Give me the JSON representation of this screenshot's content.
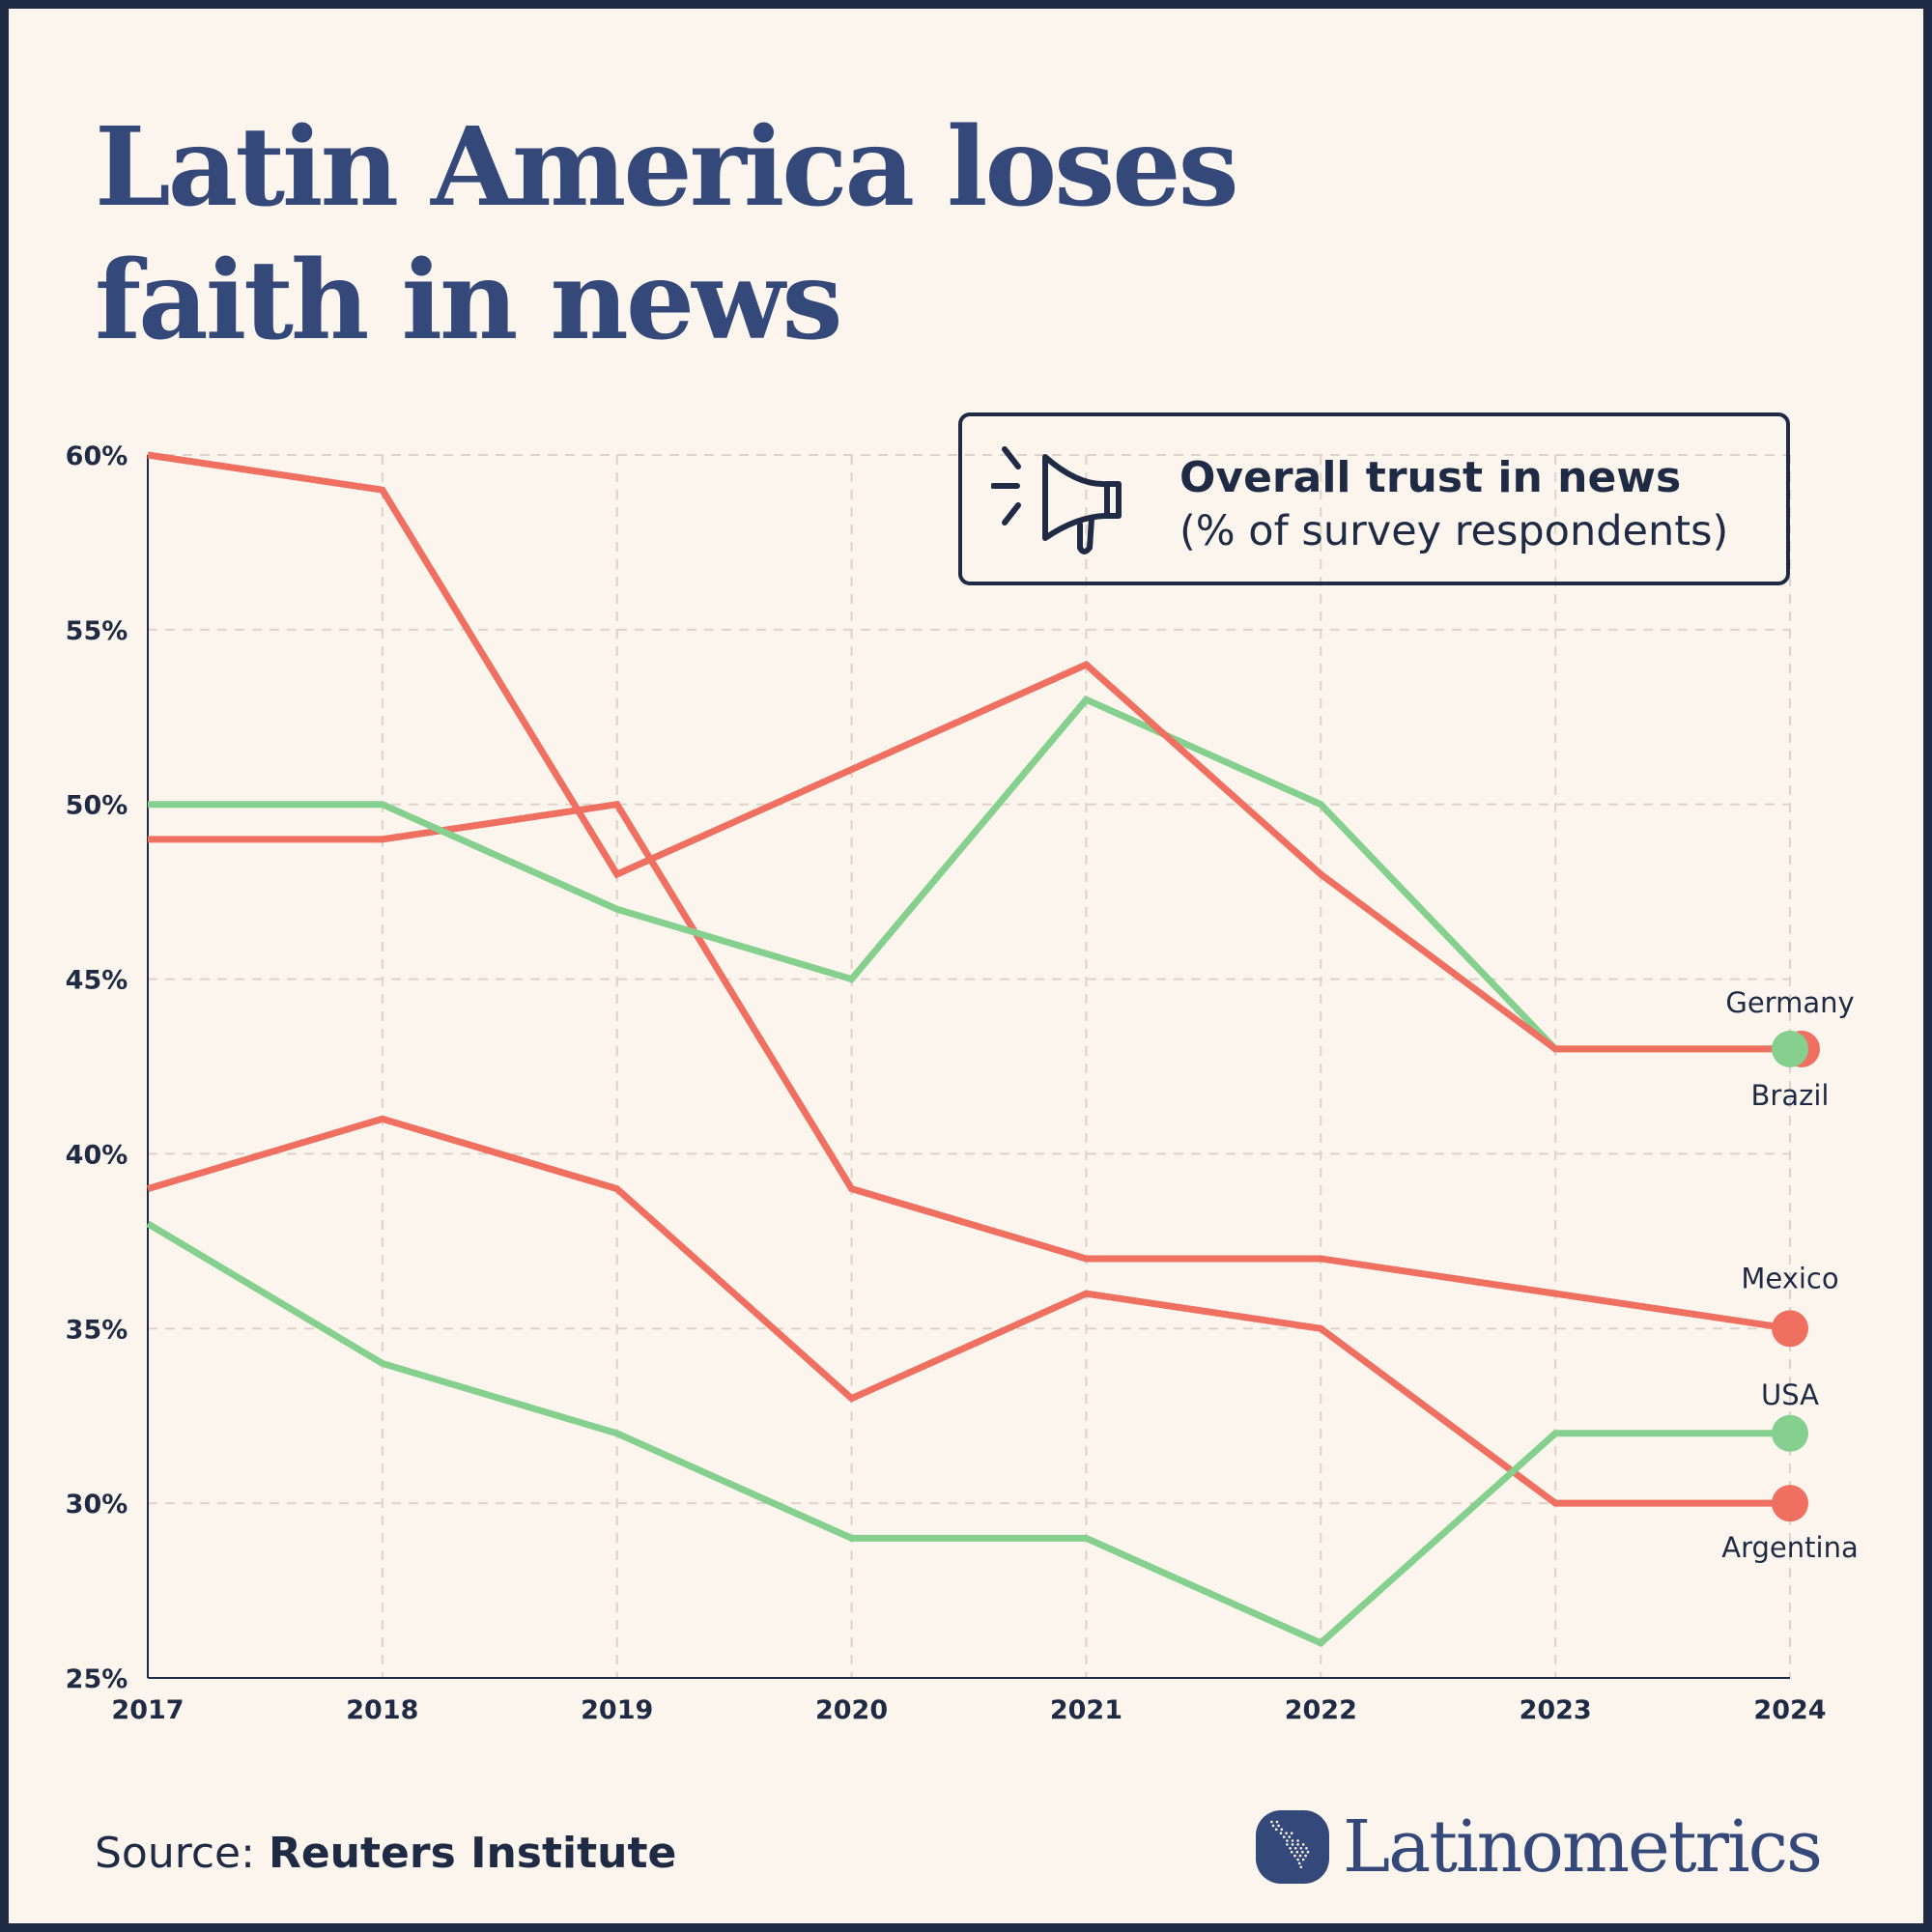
{
  "title": {
    "line1": "Latin America loses",
    "line2": "faith in news"
  },
  "legend": {
    "title": "Overall trust in news",
    "subtitle": "(% of survey respondents)",
    "icon": "megaphone-icon"
  },
  "source": {
    "label": "Source:",
    "name": "Reuters Institute"
  },
  "brand": {
    "name": "Latinometrics"
  },
  "colors": {
    "latam": "#ef6f60",
    "other": "#86d08f",
    "navy": "#34497a",
    "background": "#fcf5ed"
  },
  "chart_data": {
    "type": "line",
    "title": "Overall trust in news",
    "ylabel": "% of survey respondents",
    "x": [
      2017,
      2018,
      2019,
      2020,
      2021,
      2022,
      2023,
      2024
    ],
    "x_tick_labels": [
      "2017",
      "2018",
      "2019",
      "2020",
      "2021",
      "2022",
      "2023",
      "2024"
    ],
    "ylim": [
      25,
      60
    ],
    "y_ticks": [
      25,
      30,
      35,
      40,
      45,
      50,
      55,
      60
    ],
    "y_tick_labels": [
      "25%",
      "30%",
      "35%",
      "40%",
      "45%",
      "50%",
      "55%",
      "60%"
    ],
    "grid": true,
    "series": [
      {
        "name": "Brazil",
        "group": "latam",
        "values": [
          60,
          59,
          48,
          51,
          54,
          48,
          43,
          43
        ]
      },
      {
        "name": "Mexico",
        "group": "latam",
        "values": [
          49,
          49,
          50,
          39,
          37,
          37,
          36,
          35
        ]
      },
      {
        "name": "Argentina",
        "group": "latam",
        "values": [
          39,
          41,
          39,
          33,
          36,
          35,
          30,
          30
        ]
      },
      {
        "name": "Germany",
        "group": "other",
        "values": [
          50,
          50,
          47,
          45,
          53,
          50,
          43,
          43
        ]
      },
      {
        "name": "USA",
        "group": "other",
        "values": [
          38,
          34,
          32,
          29,
          29,
          26,
          32,
          32
        ]
      }
    ]
  }
}
